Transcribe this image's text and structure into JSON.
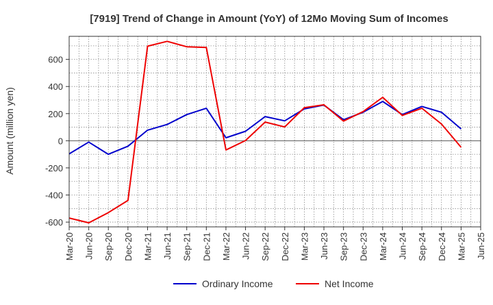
{
  "chart_data": {
    "type": "line",
    "title": "[7919]  Trend of Change in Amount (YoY) of 12Mo Moving Sum of Incomes",
    "xlabel": "",
    "ylabel": "Amount (million yen)",
    "x_ticks": [
      "Mar-20",
      "Jun-20",
      "Sep-20",
      "Dec-20",
      "Mar-21",
      "Jun-21",
      "Sep-21",
      "Dec-21",
      "Mar-22",
      "Jun-22",
      "Sep-22",
      "Dec-22",
      "Mar-23",
      "Jun-23",
      "Sep-23",
      "Dec-23",
      "Mar-24",
      "Jun-24",
      "Sep-24",
      "Dec-24",
      "Mar-25",
      "Jun-25"
    ],
    "y_ticks": [
      -600,
      -400,
      -200,
      0,
      200,
      400,
      600
    ],
    "ylim": [
      -635,
      770
    ],
    "grid": true,
    "legend": "bottom",
    "series": [
      {
        "name": "Ordinary Income",
        "color": "#0000cc",
        "x": [
          "Mar-20",
          "Jun-20",
          "Sep-20",
          "Dec-20",
          "Mar-21",
          "Jun-21",
          "Sep-21",
          "Dec-21",
          "Mar-22",
          "Jun-22",
          "Sep-22",
          "Dec-22",
          "Mar-23",
          "Jun-23",
          "Sep-23",
          "Dec-23",
          "Mar-24",
          "Jun-24",
          "Sep-24",
          "Dec-24",
          "Mar-25"
        ],
        "values": [
          -97,
          -10,
          -100,
          -40,
          78,
          120,
          193,
          240,
          22,
          70,
          178,
          147,
          235,
          263,
          155,
          210,
          290,
          193,
          253,
          210,
          87
        ]
      },
      {
        "name": "Net Income",
        "color": "#ee0000",
        "x": [
          "Mar-20",
          "Jun-20",
          "Sep-20",
          "Dec-20",
          "Mar-21",
          "Jun-21",
          "Sep-21",
          "Dec-21",
          "Mar-22",
          "Jun-22",
          "Sep-22",
          "Dec-22",
          "Mar-23",
          "Jun-23",
          "Sep-23",
          "Dec-23",
          "Mar-24",
          "Jun-24",
          "Sep-24",
          "Dec-24",
          "Mar-25"
        ],
        "values": [
          -570,
          -605,
          -530,
          -440,
          697,
          733,
          693,
          688,
          -68,
          2,
          138,
          102,
          244,
          265,
          145,
          215,
          320,
          187,
          240,
          123,
          -48
        ]
      }
    ]
  }
}
